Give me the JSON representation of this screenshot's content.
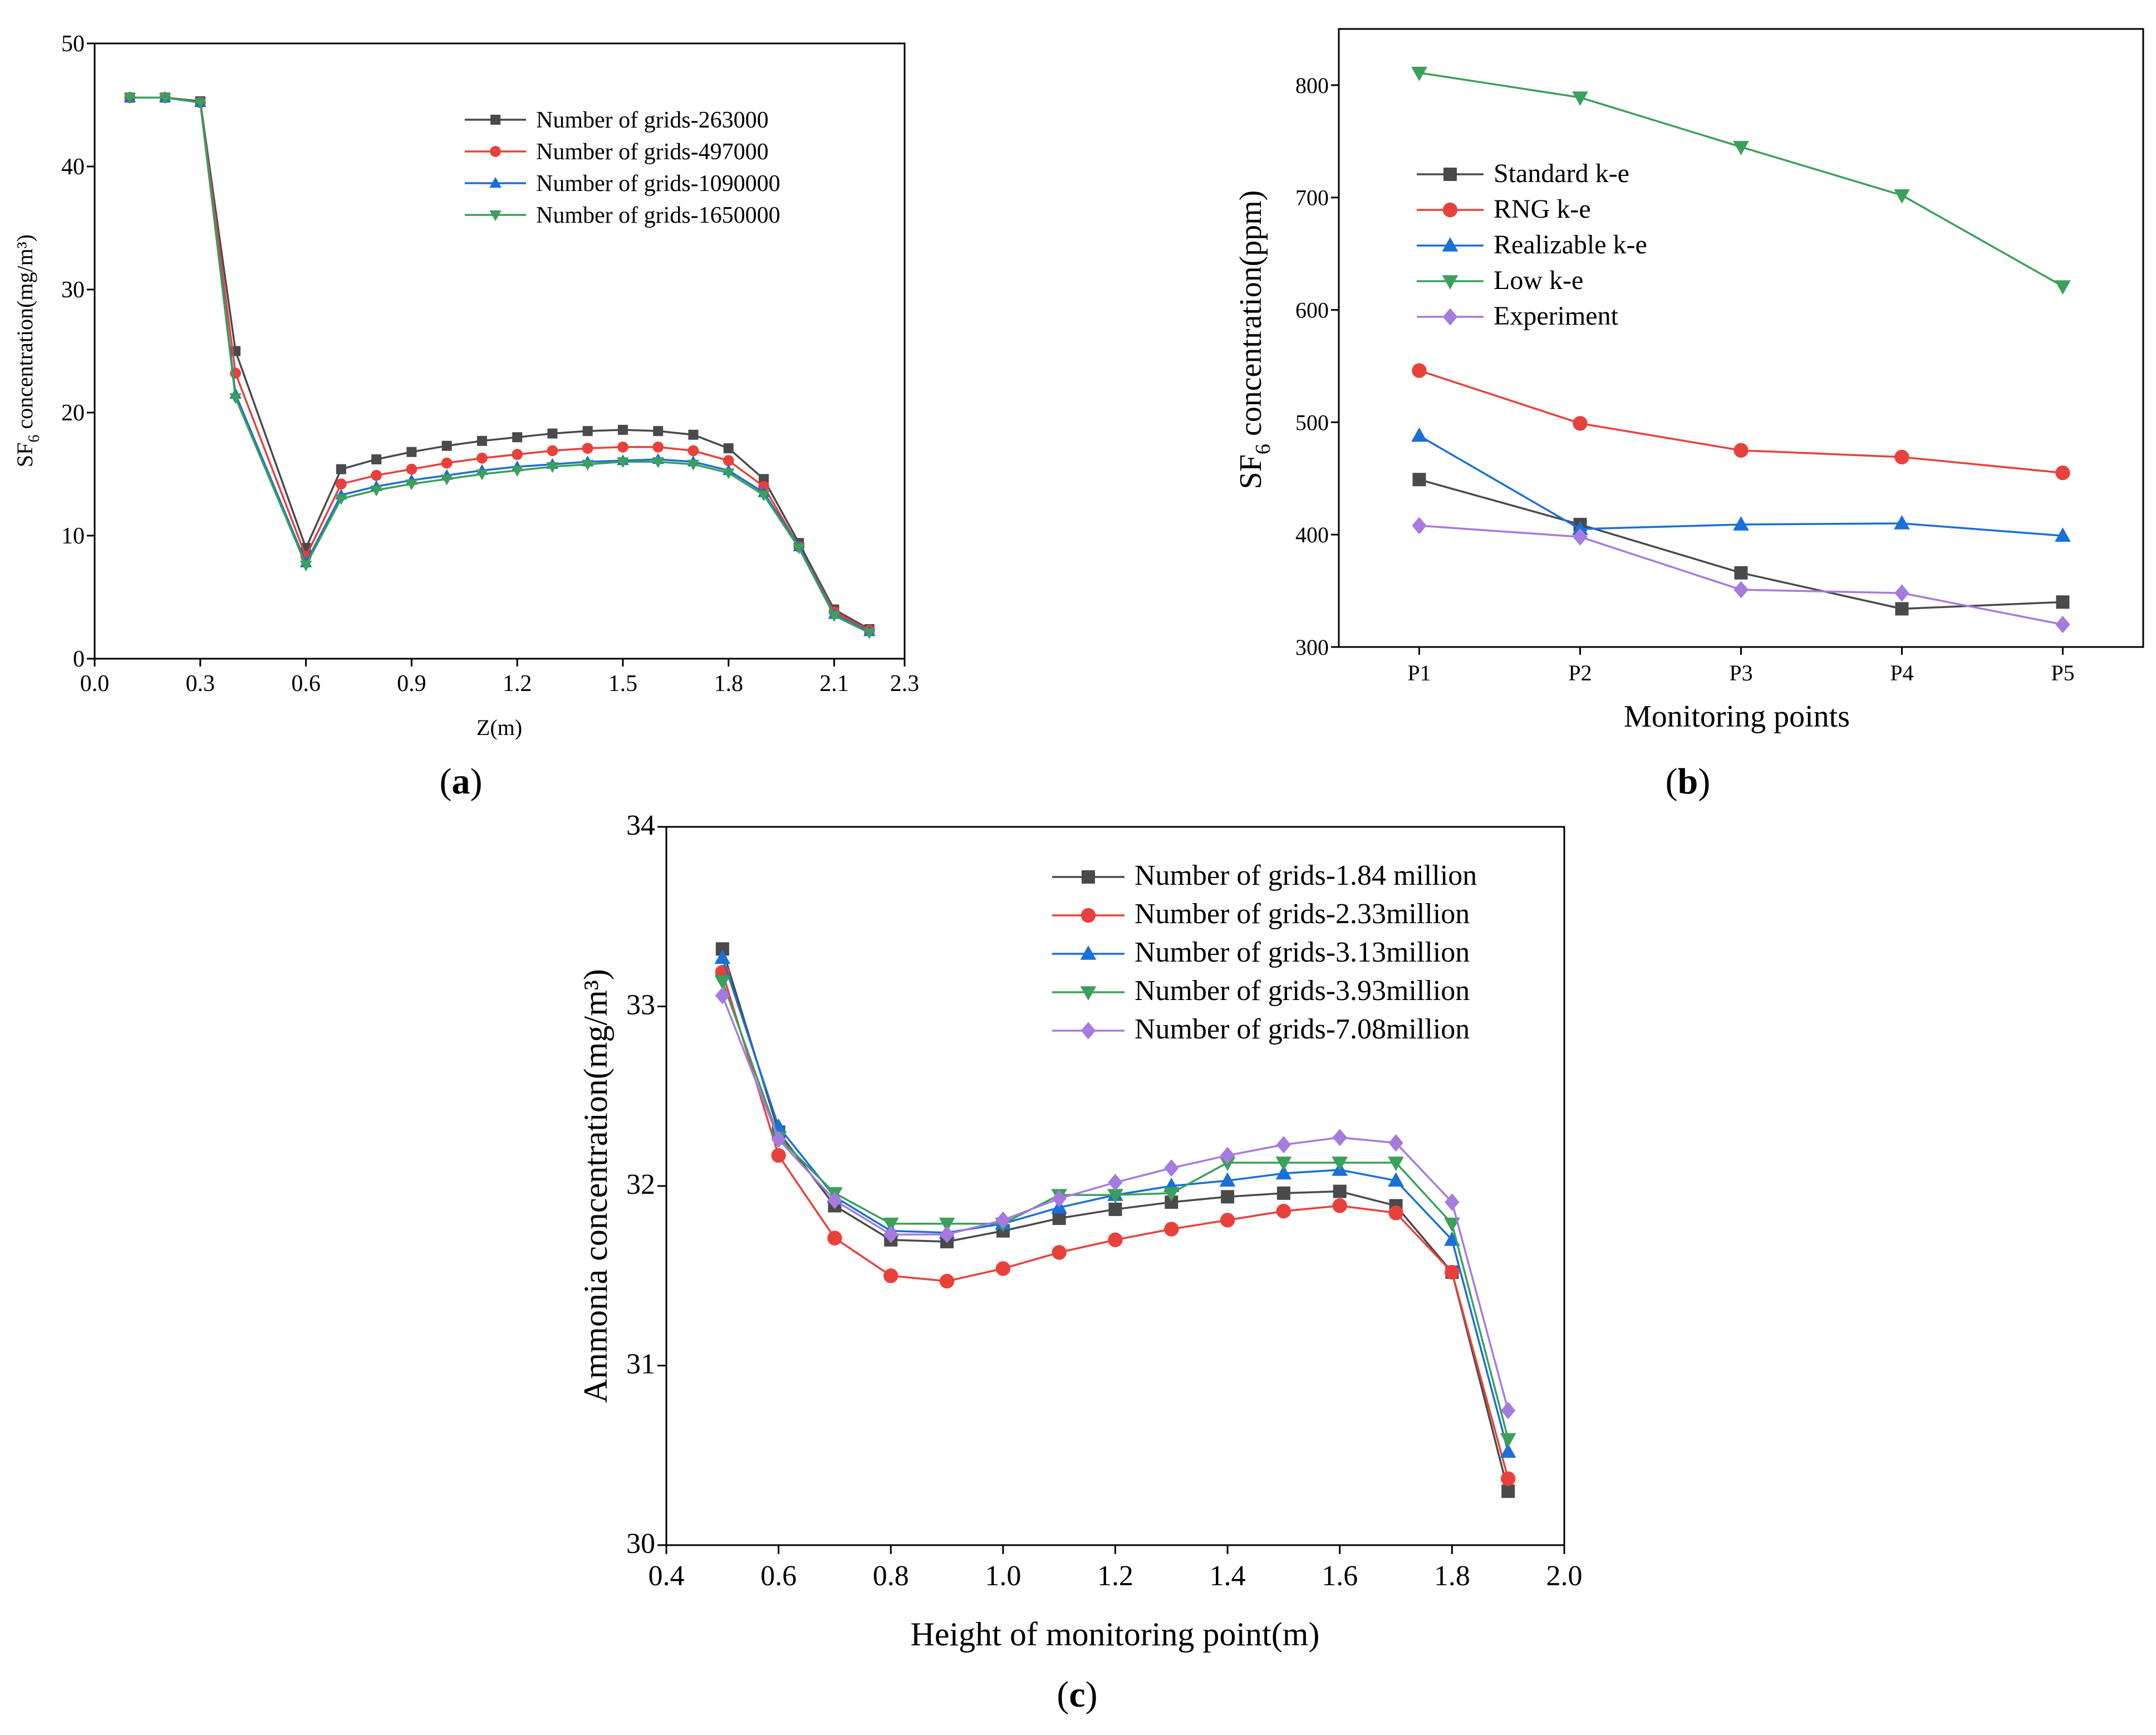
{
  "chart_data": [
    {
      "id": "a",
      "type": "line",
      "caption_label": "a",
      "xlabel": "Z(m)",
      "ylabel_parts": [
        "SF",
        "6",
        " concentration(mg/m³)"
      ],
      "xlim": [
        0.0,
        2.3
      ],
      "ylim": [
        0,
        50
      ],
      "xticks": [
        "0.0",
        "0.3",
        "0.6",
        "0.9",
        "1.2",
        "1.5",
        "1.8",
        "2.1",
        "2.3"
      ],
      "xtick_values": [
        0.0,
        0.3,
        0.6,
        0.9,
        1.2,
        1.5,
        1.8,
        2.1,
        2.3
      ],
      "yticks": [
        "0",
        "10",
        "20",
        "30",
        "40",
        "50"
      ],
      "ytick_values": [
        0,
        10,
        20,
        30,
        40,
        50
      ],
      "x": [
        0.1,
        0.2,
        0.3,
        0.4,
        0.6,
        0.7,
        0.8,
        0.9,
        1.0,
        1.1,
        1.2,
        1.3,
        1.4,
        1.5,
        1.6,
        1.7,
        1.8,
        1.9,
        2.0,
        2.1,
        2.2
      ],
      "legend_position": "top-right",
      "series": [
        {
          "name": "Number of grids-263000",
          "color": "#4a4a4a",
          "marker": "square",
          "values": [
            45.6,
            45.6,
            45.3,
            25.0,
            9.0,
            15.4,
            16.2,
            16.8,
            17.3,
            17.7,
            18.0,
            18.3,
            18.5,
            18.6,
            18.5,
            18.2,
            17.1,
            14.6,
            9.4,
            4.0,
            2.4
          ]
        },
        {
          "name": "Number of grids-497000",
          "color": "#e8413c",
          "marker": "circle",
          "values": [
            45.6,
            45.6,
            45.2,
            23.2,
            8.3,
            14.2,
            14.9,
            15.4,
            15.9,
            16.3,
            16.6,
            16.9,
            17.1,
            17.2,
            17.2,
            16.9,
            16.1,
            14.0,
            9.1,
            3.8,
            2.3
          ]
        },
        {
          "name": "Number of grids-1090000",
          "color": "#1a6fd8",
          "marker": "triangle-up",
          "values": [
            45.6,
            45.6,
            45.2,
            21.5,
            7.8,
            13.3,
            14.0,
            14.5,
            14.9,
            15.3,
            15.6,
            15.8,
            16.0,
            16.1,
            16.2,
            16.0,
            15.3,
            13.5,
            9.1,
            3.6,
            2.2
          ]
        },
        {
          "name": "Number of grids-1650000",
          "color": "#3aa05a",
          "marker": "triangle-down",
          "values": [
            45.6,
            45.6,
            45.2,
            21.2,
            7.6,
            13.0,
            13.7,
            14.2,
            14.6,
            15.0,
            15.3,
            15.6,
            15.8,
            16.0,
            16.0,
            15.8,
            15.1,
            13.3,
            9.0,
            3.5,
            2.1
          ]
        }
      ]
    },
    {
      "id": "b",
      "type": "line",
      "caption_label": "b",
      "xlabel": "Monitoring points",
      "ylabel_parts": [
        "SF",
        "6",
        " concentration(ppm)"
      ],
      "categories": [
        "P1",
        "P2",
        "P3",
        "P4",
        "P5"
      ],
      "ylim": [
        300,
        850
      ],
      "yticks": [
        "300",
        "400",
        "500",
        "600",
        "700",
        "800"
      ],
      "ytick_values": [
        300,
        400,
        500,
        600,
        700,
        800
      ],
      "legend_position": "center-left",
      "series": [
        {
          "name": "Standard k-e",
          "color": "#4a4a4a",
          "marker": "square",
          "values": [
            449,
            409,
            366,
            334,
            340
          ]
        },
        {
          "name": "RNG k-e",
          "color": "#e8413c",
          "marker": "circle",
          "values": [
            546,
            499,
            475,
            469,
            455
          ]
        },
        {
          "name": "Realizable k-e",
          "color": "#1a6fd8",
          "marker": "triangle-up",
          "values": [
            488,
            405,
            409,
            410,
            399
          ]
        },
        {
          "name": "Low k-e",
          "color": "#3aa05a",
          "marker": "triangle-down",
          "values": [
            811,
            789,
            745,
            702,
            621
          ]
        },
        {
          "name": "Experiment",
          "color": "#a77ae0",
          "marker": "diamond",
          "values": [
            408,
            398,
            351,
            348,
            320
          ]
        }
      ]
    },
    {
      "id": "c",
      "type": "line",
      "caption_label": "c",
      "xlabel": "Height of monitoring point(m)",
      "ylabel_parts": [
        "Ammonia concentration(mg/m³)"
      ],
      "xlim": [
        0.4,
        2.0
      ],
      "ylim": [
        30,
        34
      ],
      "xticks": [
        "0.4",
        "0.6",
        "0.8",
        "1.0",
        "1.2",
        "1.4",
        "1.6",
        "1.8",
        "2.0"
      ],
      "xtick_values": [
        0.4,
        0.6,
        0.8,
        1.0,
        1.2,
        1.4,
        1.6,
        1.8,
        2.0
      ],
      "yticks": [
        "30",
        "31",
        "32",
        "33",
        "34"
      ],
      "ytick_values": [
        30,
        31,
        32,
        33,
        34
      ],
      "x": [
        0.5,
        0.6,
        0.7,
        0.8,
        0.9,
        1.0,
        1.1,
        1.2,
        1.3,
        1.4,
        1.5,
        1.6,
        1.7,
        1.8,
        1.9
      ],
      "legend_position": "top-right",
      "series": [
        {
          "name": "Number of grids-1.84 million",
          "color": "#4a4a4a",
          "marker": "square",
          "values": [
            33.32,
            32.3,
            31.89,
            31.7,
            31.69,
            31.75,
            31.82,
            31.87,
            31.91,
            31.94,
            31.96,
            31.97,
            31.89,
            31.52,
            30.3
          ]
        },
        {
          "name": "Number of grids-2.33million",
          "color": "#e8413c",
          "marker": "circle",
          "values": [
            33.19,
            32.17,
            31.71,
            31.5,
            31.47,
            31.54,
            31.63,
            31.7,
            31.76,
            31.81,
            31.86,
            31.89,
            31.85,
            31.52,
            30.37
          ]
        },
        {
          "name": "Number of grids-3.13million",
          "color": "#1a6fd8",
          "marker": "triangle-up",
          "values": [
            33.27,
            32.33,
            31.94,
            31.75,
            31.74,
            31.79,
            31.88,
            31.95,
            32.0,
            32.03,
            32.07,
            32.09,
            32.03,
            31.7,
            30.52
          ]
        },
        {
          "name": "Number of grids-3.93million",
          "color": "#3aa05a",
          "marker": "triangle-down",
          "values": [
            33.14,
            32.27,
            31.96,
            31.79,
            31.79,
            31.79,
            31.95,
            31.95,
            31.96,
            32.13,
            32.13,
            32.13,
            32.13,
            31.79,
            30.59
          ]
        },
        {
          "name": "Number of grids-7.08million",
          "color": "#a77ae0",
          "marker": "diamond",
          "values": [
            33.06,
            32.26,
            31.92,
            31.73,
            31.73,
            31.81,
            31.93,
            32.02,
            32.1,
            32.17,
            32.23,
            32.27,
            32.24,
            31.91,
            30.75
          ]
        }
      ]
    }
  ]
}
